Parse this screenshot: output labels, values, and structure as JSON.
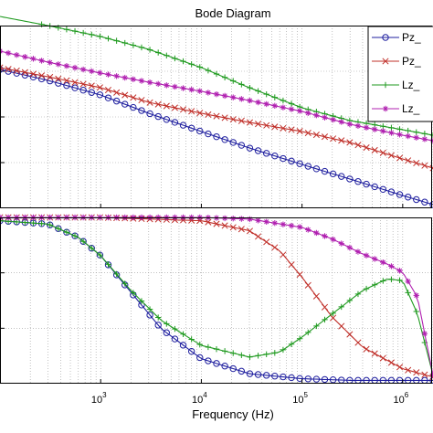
{
  "chart_data": {
    "type": "line",
    "title": "Bode Diagram",
    "xlabel": "Frequency  (Hz)",
    "x_scale": "log",
    "xlim": [
      100,
      2000000
    ],
    "x_tick_labels": [
      {
        "base": "10",
        "exp": "3",
        "value": 1000
      },
      {
        "base": "10",
        "exp": "4",
        "value": 10000
      },
      {
        "base": "10",
        "exp": "5",
        "value": 100000
      },
      {
        "base": "10",
        "exp": "6",
        "value": 1000000
      }
    ],
    "grid": true,
    "legend": {
      "placement": "top-right",
      "entries": [
        {
          "label": "Pz_",
          "color": "#1f1f9f",
          "marker": "circle"
        },
        {
          "label": "Pz_",
          "color": "#c0302a",
          "marker": "x"
        },
        {
          "label": "Lz_",
          "color": "#1f9a1f",
          "marker": "plus"
        },
        {
          "label": "Lz_",
          "color": "#b020b0",
          "marker": "star"
        }
      ]
    },
    "panels": [
      {
        "name": "magnitude",
        "ylim": [
          0,
          1
        ],
        "series": [
          {
            "color": "#1f1f9f",
            "marker": "circle",
            "x": [
              100,
              300,
              1000,
              3000,
              10000,
              30000,
              100000,
              300000,
              1000000,
              2000000
            ],
            "values": [
              0.76,
              0.7,
              0.62,
              0.52,
              0.42,
              0.33,
              0.24,
              0.16,
              0.07,
              0.02
            ]
          },
          {
            "color": "#c0302a",
            "marker": "x",
            "x": [
              100,
              300,
              1000,
              3000,
              10000,
              30000,
              100000,
              300000,
              1000000,
              2000000
            ],
            "values": [
              0.77,
              0.72,
              0.66,
              0.58,
              0.52,
              0.47,
              0.42,
              0.36,
              0.27,
              0.22
            ]
          },
          {
            "color": "#1f9a1f",
            "marker": "plus",
            "x": [
              100,
              300,
              1000,
              3000,
              10000,
              30000,
              100000,
              300000,
              1000000,
              2000000
            ],
            "values": [
              1.05,
              1.0,
              0.94,
              0.87,
              0.77,
              0.66,
              0.55,
              0.48,
              0.43,
              0.4
            ]
          },
          {
            "color": "#b020b0",
            "marker": "star",
            "x": [
              100,
              300,
              1000,
              3000,
              10000,
              30000,
              100000,
              300000,
              1000000,
              2000000
            ],
            "values": [
              0.86,
              0.8,
              0.74,
              0.69,
              0.64,
              0.59,
              0.53,
              0.46,
              0.4,
              0.37
            ]
          }
        ]
      },
      {
        "name": "phase",
        "ylim": [
          0,
          1
        ],
        "series": [
          {
            "color": "#1f1f9f",
            "marker": "circle",
            "x": [
              100,
              300,
              600,
              1000,
              2000,
              4000,
              10000,
              30000,
              100000,
              300000,
              1000000,
              2000000
            ],
            "values": [
              0.98,
              0.96,
              0.88,
              0.77,
              0.55,
              0.33,
              0.15,
              0.06,
              0.03,
              0.02,
              0.02,
              0.02
            ]
          },
          {
            "color": "#c0302a",
            "marker": "x",
            "x": [
              100,
              1000,
              10000,
              30000,
              60000,
              100000,
              200000,
              400000,
              1000000,
              2000000
            ],
            "values": [
              1.0,
              1.0,
              0.98,
              0.92,
              0.8,
              0.64,
              0.4,
              0.22,
              0.09,
              0.04
            ]
          },
          {
            "color": "#1f9a1f",
            "marker": "plus",
            "x": [
              100,
              300,
              600,
              1000,
              2000,
              4000,
              10000,
              30000,
              60000,
              100000,
              200000,
              400000,
              700000,
              1000000,
              1400000,
              2000000
            ],
            "values": [
              0.98,
              0.96,
              0.88,
              0.77,
              0.56,
              0.38,
              0.23,
              0.16,
              0.19,
              0.28,
              0.42,
              0.56,
              0.63,
              0.62,
              0.42,
              0.05
            ]
          },
          {
            "color": "#b020b0",
            "marker": "star",
            "x": [
              100,
              1000,
              10000,
              30000,
              100000,
              200000,
              400000,
              700000,
              1000000,
              1400000,
              2000000
            ],
            "values": [
              1.0,
              1.0,
              1.0,
              0.99,
              0.94,
              0.87,
              0.78,
              0.72,
              0.67,
              0.52,
              0.05
            ]
          }
        ]
      }
    ]
  }
}
